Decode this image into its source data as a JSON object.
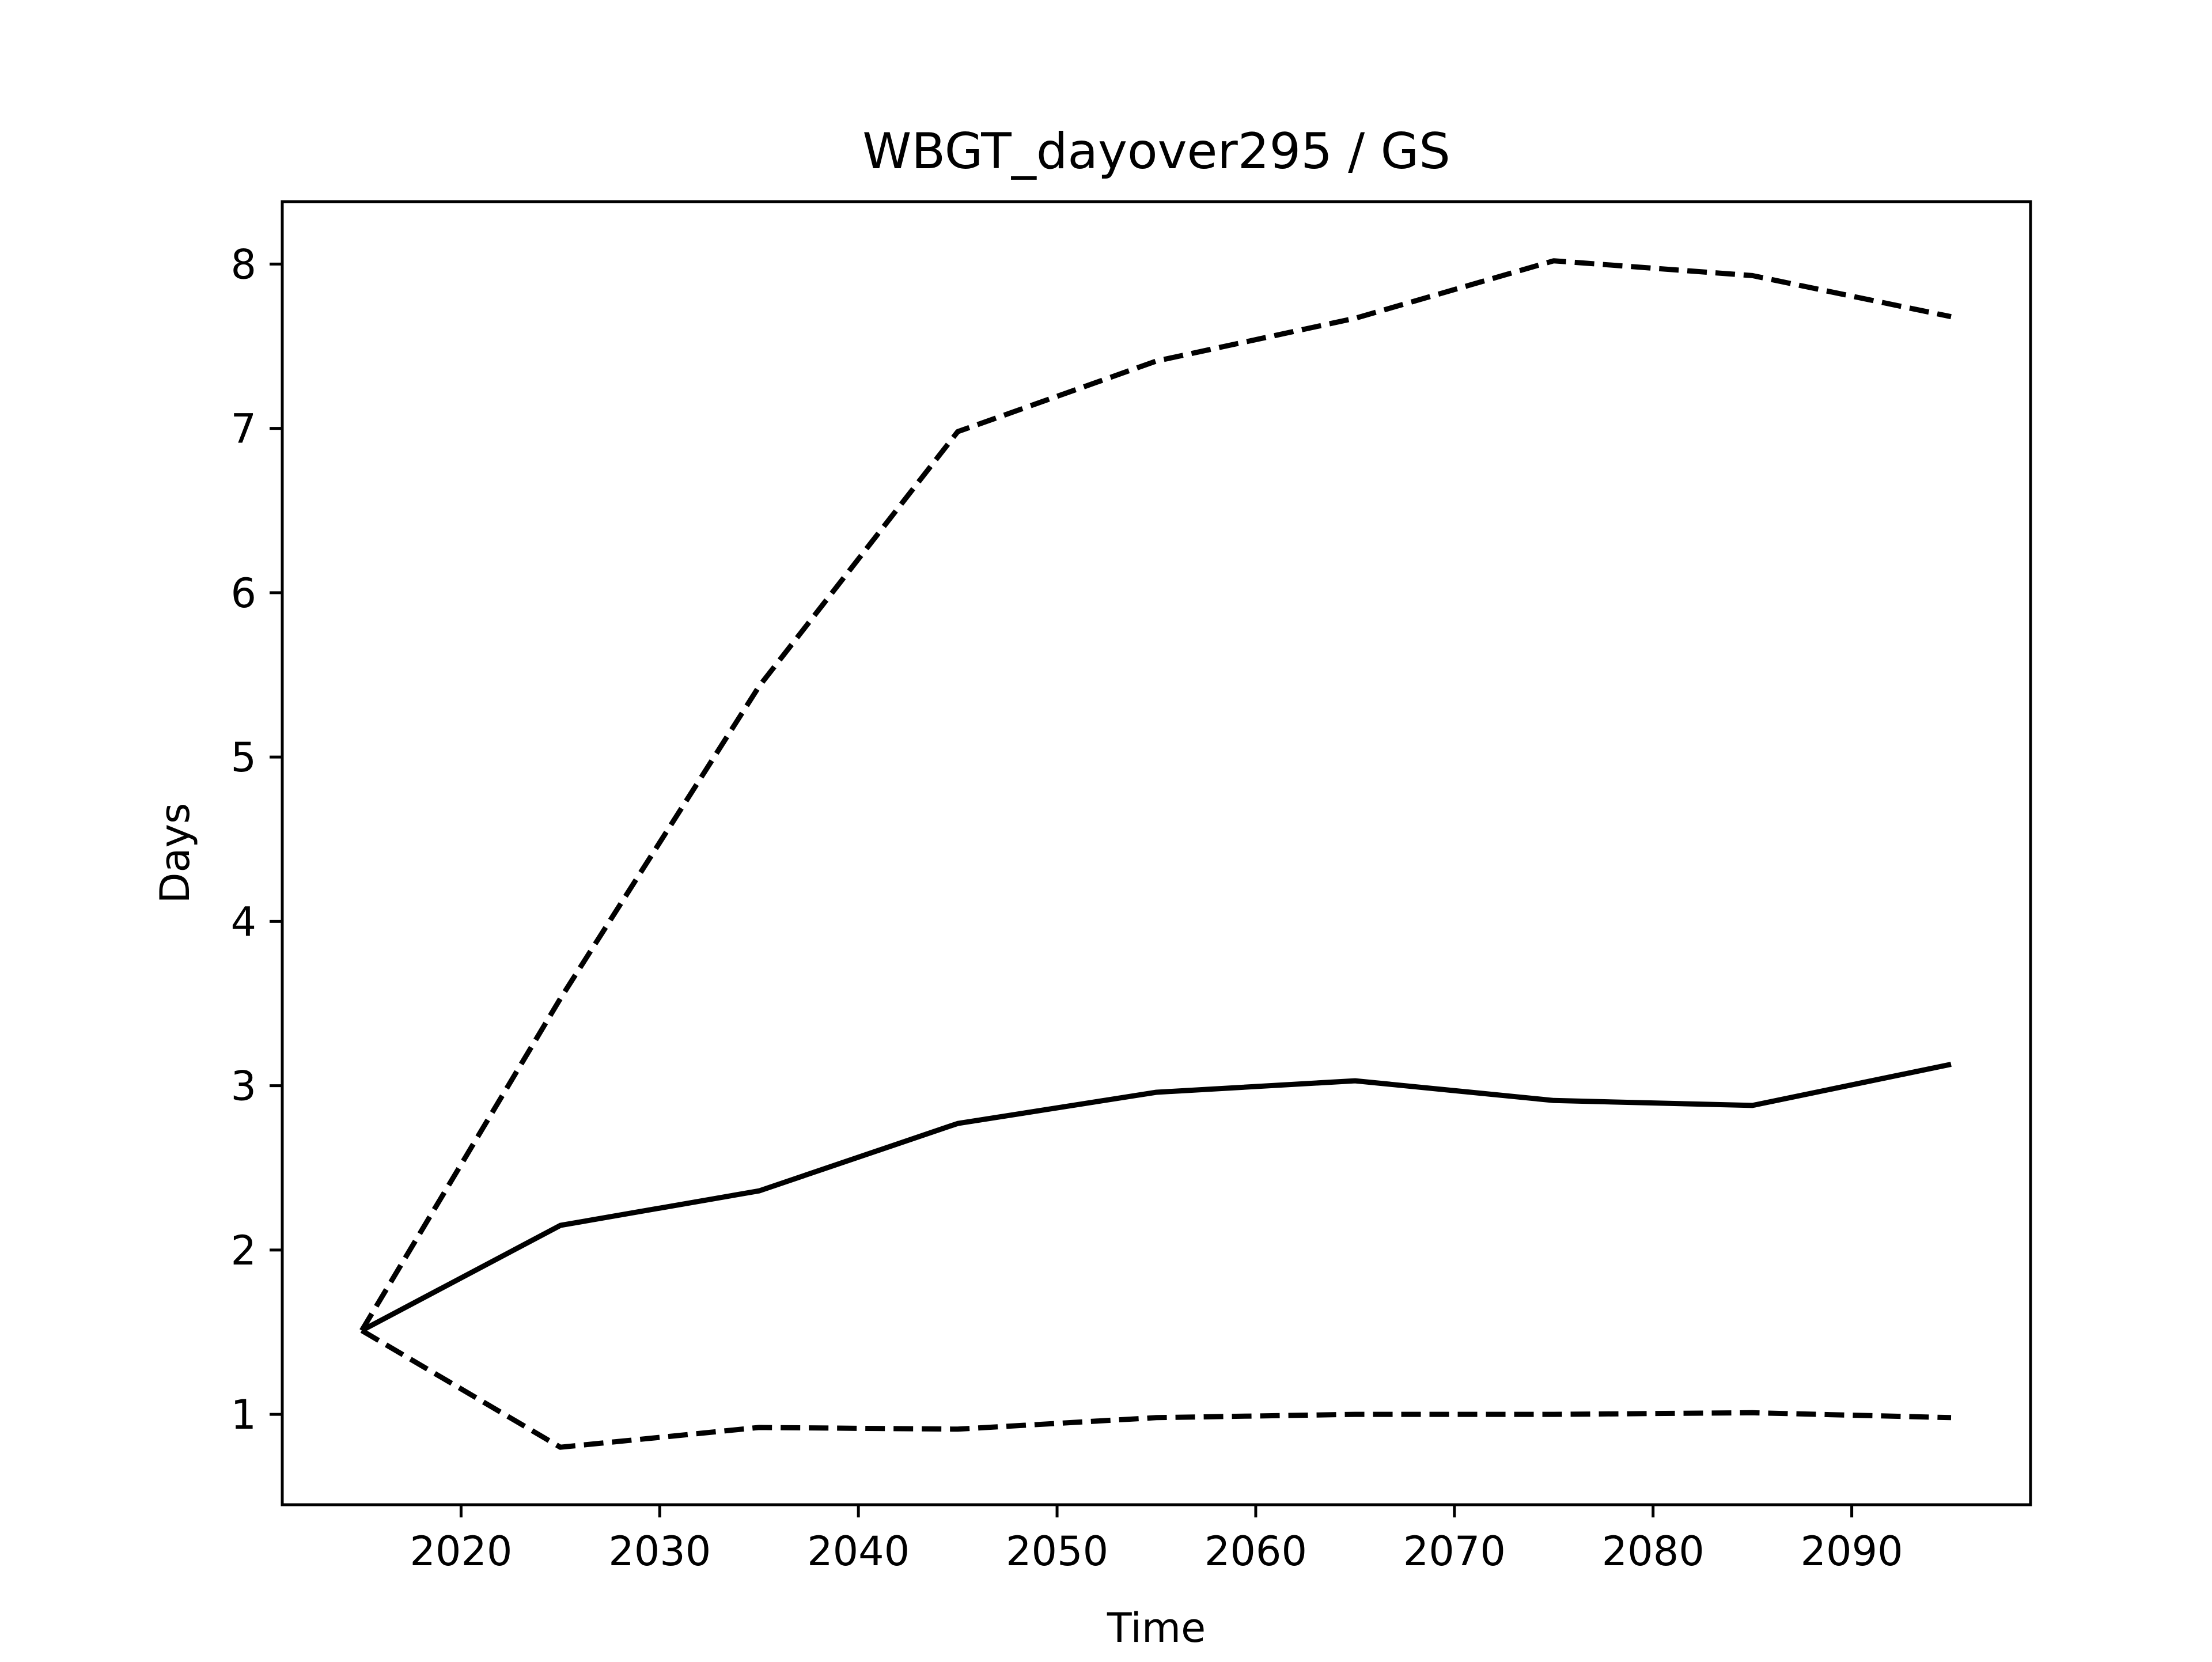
{
  "chart_data": {
    "type": "line",
    "title": "WBGT_dayover295 / GS",
    "xlabel": "Time",
    "ylabel": "Days",
    "xlim": [
      2011,
      2099
    ],
    "ylim": [
      0.45,
      8.38
    ],
    "x_ticks": [
      2020,
      2030,
      2040,
      2050,
      2060,
      2070,
      2080,
      2090
    ],
    "y_ticks": [
      1,
      2,
      3,
      4,
      5,
      6,
      7,
      8
    ],
    "x_tick_labels": [
      "2020",
      "2030",
      "2040",
      "2050",
      "2060",
      "2070",
      "2080",
      "2090"
    ],
    "y_tick_labels": [
      "1",
      "2",
      "3",
      "4",
      "5",
      "6",
      "7",
      "8"
    ],
    "grid": false,
    "x": [
      2015,
      2025,
      2035,
      2045,
      2055,
      2065,
      2075,
      2085,
      2095
    ],
    "series": [
      {
        "style": "solid",
        "color": "#000000",
        "values": [
          1.51,
          2.15,
          2.36,
          2.77,
          2.96,
          3.03,
          2.91,
          2.88,
          3.13
        ]
      },
      {
        "style": "dashed",
        "color": "#000000",
        "values": [
          1.51,
          3.53,
          5.43,
          6.98,
          7.41,
          7.67,
          8.02,
          7.93,
          7.68
        ]
      },
      {
        "style": "dashed",
        "color": "#000000",
        "values": [
          1.51,
          0.8,
          0.92,
          0.91,
          0.98,
          1.0,
          1.0,
          1.01,
          0.98
        ]
      }
    ]
  }
}
